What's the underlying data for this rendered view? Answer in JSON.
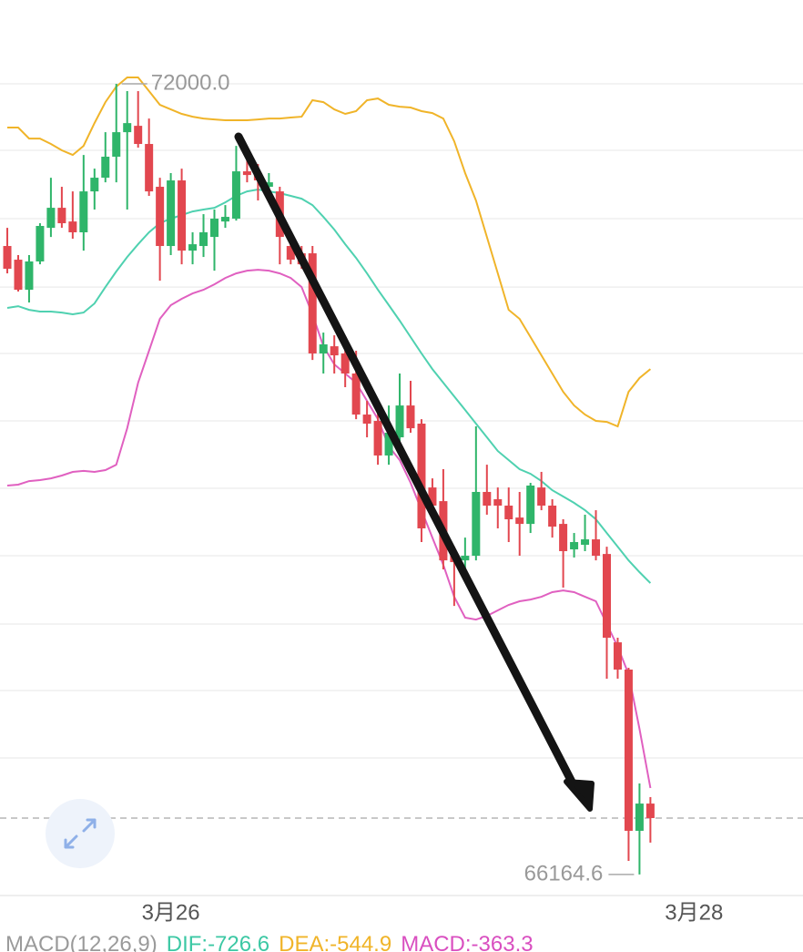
{
  "chart_data": {
    "type": "candlestick",
    "categories": [
      null,
      null,
      null,
      null,
      null,
      null,
      null,
      null,
      null,
      null,
      null,
      null,
      null,
      null,
      null,
      null,
      null,
      null,
      null,
      null,
      null,
      null,
      null,
      null,
      null,
      null,
      null,
      null,
      null,
      null,
      null,
      null,
      null,
      null,
      null,
      null,
      null,
      null,
      null,
      null,
      null,
      null,
      null,
      null,
      null,
      null,
      null,
      null,
      null,
      null,
      null,
      null,
      null,
      null,
      null,
      null,
      null,
      null,
      null,
      null
    ],
    "open": [
      70803,
      70702,
      70480,
      70689,
      70937,
      71085,
      70984,
      70904,
      71206,
      71307,
      71462,
      71643,
      71690,
      71556,
      71240,
      70803,
      71287,
      70769,
      70803,
      70870,
      70984,
      71005,
      71354,
      71341,
      71240,
      71206,
      70803,
      70749,
      70749,
      70010,
      70063,
      70010,
      69862,
      69559,
      69512,
      69257,
      69391,
      69626,
      69492,
      69021,
      68920,
      68517,
      68483,
      68517,
      68988,
      68934,
      68887,
      68799,
      68752,
      69021,
      68887,
      68752,
      68564,
      68598,
      68638,
      68530,
      67878,
      67677,
      66487,
      66688
    ],
    "high": [
      70937,
      70736,
      70736,
      70971,
      71307,
      71240,
      71206,
      71475,
      71374,
      71643,
      72000,
      71946,
      71946,
      71744,
      71307,
      71341,
      71374,
      70904,
      71038,
      71072,
      71105,
      71542,
      71442,
      71408,
      71341,
      71240,
      70904,
      70803,
      70803,
      70164,
      70144,
      70131,
      70030,
      69660,
      69660,
      69626,
      69862,
      69808,
      69525,
      69088,
      69156,
      68584,
      68651,
      69472,
      69189,
      69021,
      69021,
      68988,
      69055,
      69136,
      68934,
      68786,
      68685,
      68820,
      68853,
      68584,
      67912,
      67690,
      66836,
      66736
    ],
    "low": [
      70601,
      70467,
      70386,
      70668,
      70870,
      70937,
      70857,
      70769,
      71072,
      71273,
      71273,
      71072,
      71529,
      71173,
      70547,
      70736,
      70668,
      70668,
      70722,
      70621,
      70937,
      70991,
      71273,
      71139,
      71139,
      70668,
      70668,
      70635,
      69962,
      69862,
      69862,
      69761,
      69525,
      69391,
      69189,
      69189,
      69324,
      69425,
      68618,
      68820,
      68416,
      68147,
      68396,
      68483,
      68820,
      68719,
      68618,
      68517,
      68685,
      68853,
      68651,
      68282,
      68504,
      68551,
      68483,
      67610,
      67610,
      66265,
      66164.6,
      66400
    ],
    "close": [
      70635,
      70480,
      70689,
      70951,
      71085,
      70971,
      70904,
      71206,
      71307,
      71462,
      71643,
      71710,
      71556,
      71206,
      70803,
      71287,
      70769,
      70816,
      70904,
      71005,
      71018,
      71354,
      71327,
      71287,
      71273,
      70870,
      70702,
      70668,
      70010,
      70077,
      69996,
      69862,
      69559,
      69492,
      69257,
      69425,
      69626,
      69458,
      68719,
      68887,
      68483,
      68470,
      68517,
      68988,
      68887,
      68887,
      68786,
      68752,
      69035,
      68887,
      68732,
      68551,
      68618,
      68638,
      68517,
      67912,
      67677,
      66487,
      66688,
      66581
    ],
    "up_color": "#2fb56a",
    "down_color": "#e2474f",
    "overlays": [
      {
        "color": "#f0b429",
        "values": [
          71677,
          71677,
          71596,
          71596,
          71556,
          71509,
          71475,
          71542,
          71710,
          71865,
          71979,
          72047,
          72047,
          71946,
          71845,
          71811,
          71778,
          71757,
          71744,
          71737,
          71731,
          71731,
          71731,
          71737,
          71744,
          71744,
          71751,
          71757,
          71879,
          71865,
          71811,
          71778,
          71798,
          71879,
          71892,
          71845,
          71831,
          71825,
          71798,
          71784,
          71744,
          71576,
          71341,
          71139,
          70870,
          70601,
          70332,
          70265,
          70131,
          69996,
          69862,
          69727,
          69626,
          69559,
          69512,
          69505,
          69472,
          69727,
          69828,
          69895
        ]
      },
      {
        "color": "#4fd1b0",
        "values": [
          70346,
          70359,
          70332,
          70319,
          70319,
          70312,
          70299,
          70312,
          70379,
          70500,
          70615,
          70722,
          70816,
          70904,
          70971,
          71005,
          71031,
          71058,
          71072,
          71085,
          71125,
          71173,
          71206,
          71220,
          71206,
          71193,
          71173,
          71152,
          71105,
          71018,
          70924,
          70816,
          70715,
          70601,
          70480,
          70366,
          70252,
          70131,
          70010,
          69895,
          69794,
          69693,
          69593,
          69492,
          69391,
          69290,
          69223,
          69156,
          69122,
          69068,
          69001,
          68954,
          68907,
          68853,
          68786,
          68685,
          68584,
          68483,
          68396,
          68315
        ]
      },
      {
        "color": "#e060c0",
        "values": [
          69035,
          69042,
          69068,
          69075,
          69088,
          69109,
          69136,
          69143,
          69136,
          69149,
          69189,
          69458,
          69794,
          70030,
          70265,
          70366,
          70413,
          70453,
          70480,
          70520,
          70567,
          70601,
          70621,
          70628,
          70621,
          70601,
          70567,
          70500,
          70299,
          70063,
          69929,
          69862,
          69794,
          69660,
          69525,
          69324,
          69223,
          69055,
          68853,
          68651,
          68450,
          68214,
          68060,
          68046,
          68073,
          68114,
          68154,
          68181,
          68194,
          68214,
          68248,
          68261,
          68248,
          68214,
          68181,
          68013,
          67845,
          67643,
          67240,
          66803
        ]
      }
    ],
    "ylim": [
      65996,
      72618.5
    ],
    "xlim": [
      -0.67,
      73
    ],
    "ygrid": [
      72000,
      71509,
      71005,
      70500,
      70010,
      69512,
      69015,
      68517,
      68013,
      67522,
      67025
    ],
    "xticks": [
      {
        "value": 15,
        "label": "3月26"
      },
      {
        "value": 63,
        "label": "3月28"
      }
    ],
    "high_label": "72000.0",
    "low_label": "66164.6",
    "indicator": [
      {
        "text": "MACD(12,26,9)",
        "color": "#9a9a9a"
      },
      {
        "text": "DIF:-726.6",
        "color": "#3cc8a4"
      },
      {
        "text": "DEA:-544.9",
        "color": "#f0b429"
      },
      {
        "text": "MACD:-363.3",
        "color": "#d94fc0"
      }
    ]
  }
}
